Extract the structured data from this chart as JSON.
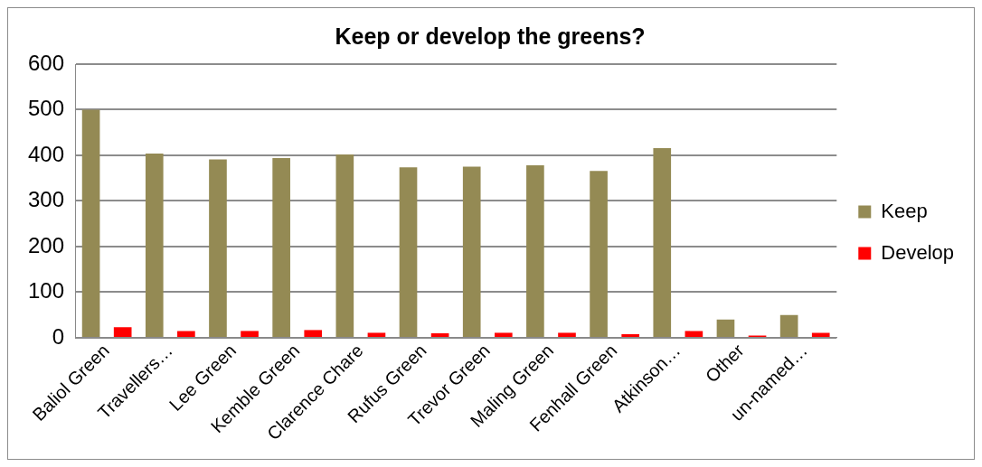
{
  "chart_data": {
    "type": "bar",
    "title": "Keep or develop the greens?",
    "categories": [
      "Baliol Green",
      "Travellers…",
      "Lee Green",
      "Kemble Green",
      "Clarence Chare",
      "Rufus Green",
      "Trevor Green",
      "Maling Green",
      "Fenhall Green",
      "Atkinson…",
      "Other",
      "un-named…"
    ],
    "series": [
      {
        "name": "Keep",
        "color": "#948a54",
        "values": [
          500,
          404,
          391,
          394,
          402,
          374,
          375,
          378,
          366,
          416,
          40,
          50
        ]
      },
      {
        "name": "Develop",
        "color": "#ff0000",
        "values": [
          23,
          15,
          15,
          17,
          11,
          10,
          11,
          11,
          8,
          15,
          5,
          11
        ]
      }
    ],
    "ylim": [
      0,
      600
    ],
    "yticks": [
      0,
      100,
      200,
      300,
      400,
      500,
      600
    ],
    "grid": "y",
    "legend": "right"
  }
}
